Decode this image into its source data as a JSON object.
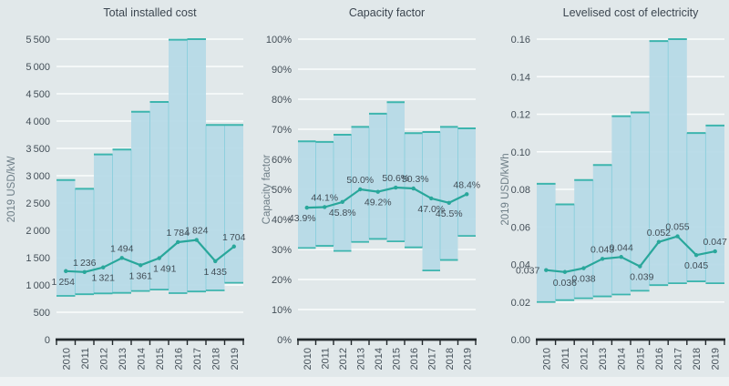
{
  "figure": {
    "background_color": "#e1e8ea",
    "strip_color": "#eef2f3"
  },
  "colors": {
    "band_fill": "#b5d9e6",
    "band_edge": "#3db5ae",
    "separator": "#8fd0de",
    "line": "#29a79b",
    "grid": "#fbfdfd",
    "axis": "#22292c",
    "tick_text": "#444f58",
    "label_text": "#424d56",
    "ylabel_text": "#6e7e87",
    "title_text": "#3c4650"
  },
  "chart_data": [
    {
      "type": "area",
      "title": "Total installed cost",
      "ylabel": "2019 USD/kW",
      "categories": [
        "2010",
        "2011",
        "2012",
        "2013",
        "2014",
        "2015",
        "2016",
        "2017",
        "2018",
        "2019"
      ],
      "ylim": [
        0,
        5500
      ],
      "grid": true,
      "yticks": [
        0,
        500,
        1000,
        1500,
        2000,
        2500,
        3000,
        3500,
        4000,
        4500,
        5000,
        5500
      ],
      "ytick_labels": [
        "0",
        "500",
        "1 000",
        "1 500",
        "2 000",
        "2 500",
        "3 000",
        "3 500",
        "4 000",
        "4 500",
        "5 000",
        "5 500"
      ],
      "band_top": [
        2920,
        2760,
        3390,
        3480,
        4170,
        4350,
        5490,
        5500,
        3930,
        3930
      ],
      "band_bottom": [
        800,
        830,
        845,
        855,
        890,
        915,
        850,
        880,
        900,
        1040
      ],
      "line_values": [
        1254,
        1236,
        1321,
        1494,
        1361,
        1491,
        1784,
        1824,
        1435,
        1704
      ],
      "point_labels": [
        "1 254",
        "1 236",
        "1 321",
        "1 494",
        "1 361",
        "1 491",
        "1 784",
        "1 824",
        "1 435",
        "1 704"
      ],
      "label_pos": [
        "below",
        "above",
        "below",
        "above",
        "below",
        "below",
        "above",
        "above",
        "below",
        "above"
      ],
      "label_dx": [
        -3,
        0,
        0,
        0,
        0,
        6,
        0,
        0,
        0,
        0
      ]
    },
    {
      "type": "area",
      "title": "Capacity factor",
      "ylabel": "Capacity factor",
      "categories": [
        "2010",
        "2011",
        "2012",
        "2013",
        "2014",
        "2015",
        "2016",
        "2017",
        "2018",
        "2019"
      ],
      "ylim": [
        0,
        100
      ],
      "grid": true,
      "yticks": [
        0,
        10,
        20,
        30,
        40,
        50,
        60,
        70,
        80,
        90,
        100
      ],
      "ytick_labels": [
        "0%",
        "10%",
        "20%",
        "30%",
        "40%",
        "50%",
        "60%",
        "70%",
        "80%",
        "90%",
        "100%"
      ],
      "band_top": [
        66,
        65.8,
        68.2,
        70.8,
        75.2,
        79,
        68.7,
        69.1,
        70.8,
        70.3
      ],
      "band_bottom": [
        30.5,
        31.2,
        29.5,
        32.5,
        33.5,
        32.7,
        30.7,
        23,
        26.5,
        34.5
      ],
      "line_values": [
        43.9,
        44.1,
        45.8,
        50.0,
        49.2,
        50.6,
        50.3,
        47.0,
        45.5,
        48.4
      ],
      "point_labels": [
        "43.9%",
        "44.1%",
        "45.8%",
        "50.0%",
        "49.2%",
        "50.6%",
        "50.3%",
        "47.0%",
        "45.5%",
        "48.4%"
      ],
      "label_pos": [
        "below",
        "above",
        "below",
        "above",
        "below",
        "above",
        "above",
        "below",
        "below",
        "above"
      ],
      "label_dx": [
        -5,
        0,
        0,
        0,
        0,
        0,
        2,
        0,
        0,
        0
      ]
    },
    {
      "type": "area",
      "title": "Levelised cost of electricity",
      "ylabel": "2019 USD/kWh",
      "categories": [
        "2010",
        "2011",
        "2012",
        "2013",
        "2014",
        "2015",
        "2016",
        "2017",
        "2018",
        "2019"
      ],
      "ylim": [
        0,
        0.16
      ],
      "grid": true,
      "yticks": [
        0,
        0.02,
        0.04,
        0.06,
        0.08,
        0.1,
        0.12,
        0.14,
        0.16
      ],
      "ytick_labels": [
        "0.00",
        "0.02",
        "0.04",
        "0.06",
        "0.08",
        "0.10",
        "0.12",
        "0.14",
        "0.16"
      ],
      "band_top": [
        0.083,
        0.072,
        0.085,
        0.093,
        0.119,
        0.121,
        0.159,
        0.16,
        0.11,
        0.114
      ],
      "band_bottom": [
        0.02,
        0.021,
        0.022,
        0.023,
        0.024,
        0.026,
        0.029,
        0.03,
        0.031,
        0.03
      ],
      "line_values": [
        0.037,
        0.036,
        0.038,
        0.043,
        0.044,
        0.039,
        0.052,
        0.055,
        0.045,
        0.047
      ],
      "point_labels": [
        "0.037",
        "0.036",
        "0.038",
        "0.043",
        "0.044",
        "0.039",
        "0.052",
        "0.055",
        "0.045",
        "0.047"
      ],
      "label_pos": [
        "left",
        "below",
        "below",
        "above",
        "above",
        "below",
        "above",
        "above",
        "below",
        "above"
      ],
      "label_dx": [
        0,
        0,
        0,
        0,
        0,
        2,
        0,
        0,
        0,
        0
      ]
    }
  ]
}
